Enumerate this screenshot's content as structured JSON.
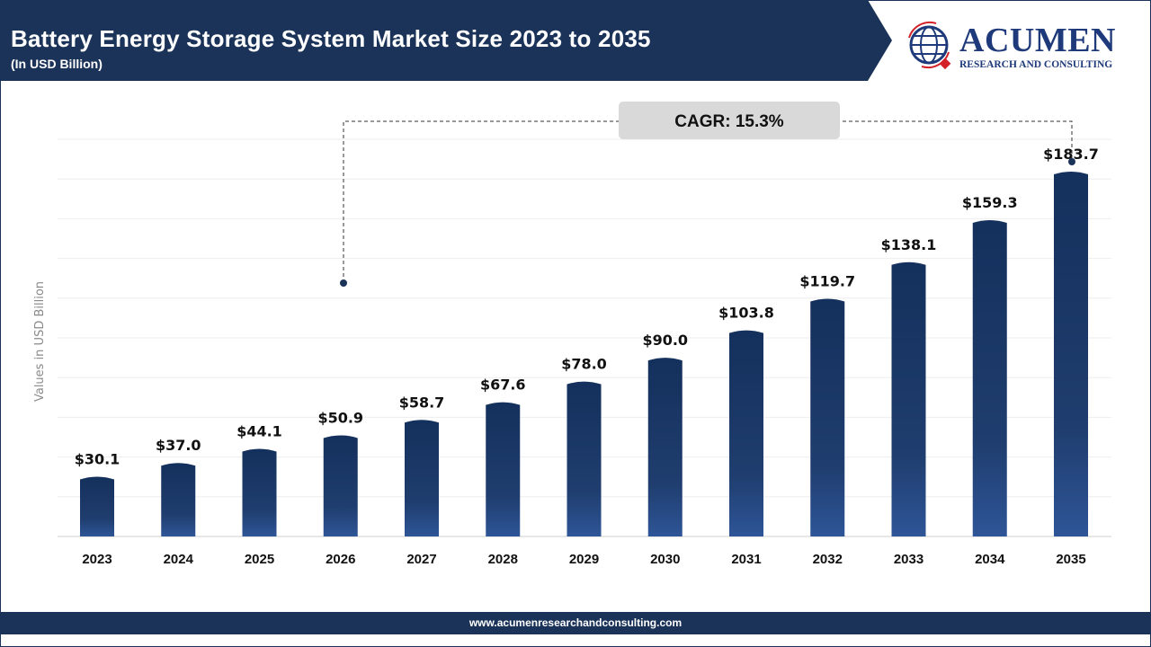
{
  "header": {
    "title": "Battery Energy Storage System Market Size 2023 to 2035",
    "subtitle": "(In USD Billion)"
  },
  "logo": {
    "brand": "ACUMEN",
    "tagline": "RESEARCH AND CONSULTING"
  },
  "footer": {
    "url": "www.acumenresearchandconsulting.com"
  },
  "colors": {
    "navy": "#1b3358",
    "bar_top": "#14305c",
    "bar_bottom": "#2e5597",
    "accent_red": "#d42027"
  },
  "chart_data": {
    "type": "bar",
    "title": "Battery Energy Storage System Market Size 2023 to 2035",
    "subtitle": "(In USD Billion)",
    "xlabel": "",
    "ylabel": "Values in USD Billion",
    "ylim": [
      0,
      200
    ],
    "grid": true,
    "categories": [
      "2023",
      "2024",
      "2025",
      "2026",
      "2027",
      "2028",
      "2029",
      "2030",
      "2031",
      "2032",
      "2033",
      "2034",
      "2035"
    ],
    "values": [
      30.1,
      37.0,
      44.1,
      50.9,
      58.7,
      67.6,
      78.0,
      90.0,
      103.8,
      119.7,
      138.1,
      159.3,
      183.7
    ],
    "labels": [
      "$30.1",
      "$37.0",
      "$44.1",
      "$50.9",
      "$58.7",
      "$67.6",
      "$78.0",
      "$90.0",
      "$103.8",
      "$119.7",
      "$138.1",
      "$159.3",
      "$183.7"
    ],
    "annotation": "CAGR: 15.3%"
  }
}
